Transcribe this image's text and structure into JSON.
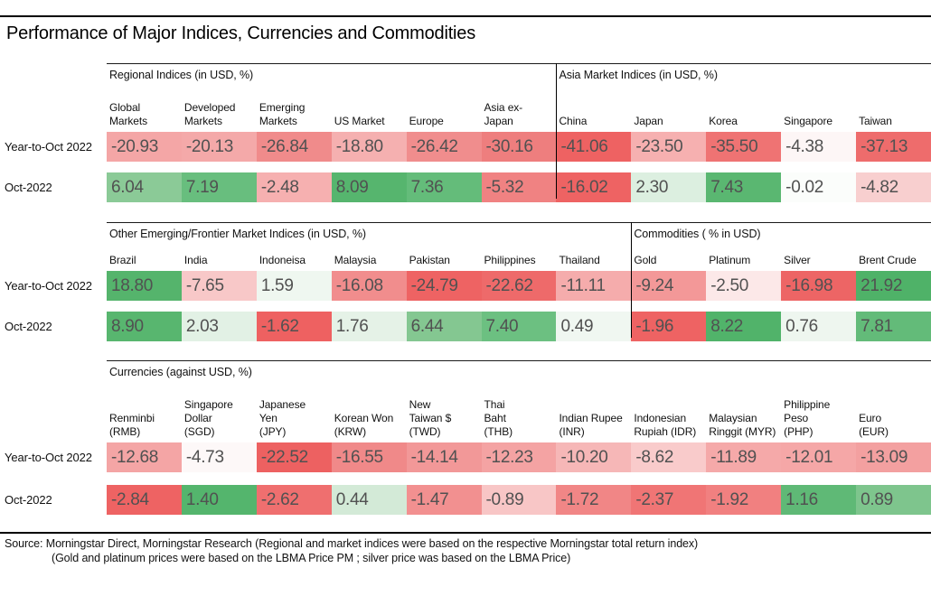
{
  "title": "Performance of Major Indices, Currencies and Commodities",
  "sections": [
    {
      "groups": [
        {
          "label": "Regional Indices (in USD, %)"
        },
        {
          "label": "Asia Market Indices (in USD, %)"
        }
      ],
      "columns": [
        "Global\nMarkets",
        "Developed\nMarkets",
        "Emerging\nMarkets",
        "US Market",
        "Europe",
        "Asia ex-\nJapan",
        "China",
        "Japan",
        "Korea",
        "Singapore",
        "Taiwan"
      ],
      "rows": [
        {
          "label": "Year-to-Oct 2022",
          "cells": [
            {
              "v": "-20.93",
              "bg": "#f4a6a6"
            },
            {
              "v": "-20.13",
              "bg": "#f4a9a9"
            },
            {
              "v": "-26.84",
              "bg": "#f08b8b"
            },
            {
              "v": "-18.80",
              "bg": "#f5b0b0"
            },
            {
              "v": "-26.42",
              "bg": "#f08d8d"
            },
            {
              "v": "-30.16",
              "bg": "#ee7e7e"
            },
            {
              "v": "-41.06",
              "bg": "#ee6262"
            },
            {
              "v": "-23.50",
              "bg": "#f6b0b0"
            },
            {
              "v": "-35.50",
              "bg": "#ef7373"
            },
            {
              "v": "-4.38",
              "bg": "#fdf6f6"
            },
            {
              "v": "-37.13",
              "bg": "#ee6c6c"
            }
          ]
        },
        {
          "label": "Oct-2022",
          "cells": [
            {
              "v": "6.04",
              "bg": "#8bca97"
            },
            {
              "v": "7.19",
              "bg": "#68be7e"
            },
            {
              "v": "-2.48",
              "bg": "#f6b0b0"
            },
            {
              "v": "8.09",
              "bg": "#56b56e"
            },
            {
              "v": "7.36",
              "bg": "#64bc7a"
            },
            {
              "v": "-5.32",
              "bg": "#f08282"
            },
            {
              "v": "-16.02",
              "bg": "#ee6363"
            },
            {
              "v": "2.30",
              "bg": "#dcefe0"
            },
            {
              "v": "7.43",
              "bg": "#5ab771"
            },
            {
              "v": "-0.02",
              "bg": "#fbfdfb"
            },
            {
              "v": "-4.82",
              "bg": "#f8cfcf"
            }
          ]
        }
      ]
    },
    {
      "groups": [
        {
          "label": "Other Emerging/Frontier Market Indices (in USD, %)"
        },
        {
          "label": "Commodities ( % in USD)"
        }
      ],
      "columns": [
        "Brazil",
        "India",
        "Indoneisa",
        "Malaysia",
        "Pakistan",
        "Philippines",
        "Thailand",
        "Gold",
        "Platinum",
        "Silver",
        "Brent Crude"
      ],
      "rows": [
        {
          "label": "Year-to-Oct 2022",
          "cells": [
            {
              "v": "18.80",
              "bg": "#55b46c"
            },
            {
              "v": "-7.65",
              "bg": "#f8c8c8"
            },
            {
              "v": "1.59",
              "bg": "#eff7f0"
            },
            {
              "v": "-16.08",
              "bg": "#f18d8d"
            },
            {
              "v": "-24.79",
              "bg": "#ee6363"
            },
            {
              "v": "-22.62",
              "bg": "#ee6a6a"
            },
            {
              "v": "-11.11",
              "bg": "#f5acac"
            },
            {
              "v": "-9.24",
              "bg": "#f39898"
            },
            {
              "v": "-2.50",
              "bg": "#fce8e8"
            },
            {
              "v": "-16.98",
              "bg": "#ed6565"
            },
            {
              "v": "21.92",
              "bg": "#4fb268"
            }
          ]
        },
        {
          "label": "Oct-2022",
          "cells": [
            {
              "v": "8.90",
              "bg": "#58b66f"
            },
            {
              "v": "2.03",
              "bg": "#e2f1e5"
            },
            {
              "v": "-1.62",
              "bg": "#ee6161"
            },
            {
              "v": "1.76",
              "bg": "#e5f2e7"
            },
            {
              "v": "6.44",
              "bg": "#84c791"
            },
            {
              "v": "7.40",
              "bg": "#6cc081"
            },
            {
              "v": "0.49",
              "bg": "#f0f7f1"
            },
            {
              "v": "-1.96",
              "bg": "#ee6363"
            },
            {
              "v": "8.22",
              "bg": "#51b36a"
            },
            {
              "v": "0.76",
              "bg": "#eef6ef"
            },
            {
              "v": "7.81",
              "bg": "#63bb79"
            }
          ]
        }
      ]
    },
    {
      "groups": [
        {
          "label": "Currencies (against USD, %)"
        }
      ],
      "columns": [
        "Renminbi\n(RMB)",
        "Singapore\nDollar\n(SGD)",
        "Japanese\nYen\n(JPY)",
        "Korean Won\n(KRW)",
        "New\nTaiwan $\n(TWD)",
        "Thai\nBaht\n(THB)",
        "Indian Rupee\n(INR)",
        "Indonesian\nRupiah (IDR)",
        "Malaysian\nRinggit (MYR)",
        "Philippine Peso\n(PHP)",
        "Euro\n(EUR)"
      ],
      "rows": [
        {
          "label": "Year-to-Oct 2022",
          "cells": [
            {
              "v": "-12.68",
              "bg": "#f4a5a5"
            },
            {
              "v": "-4.73",
              "bg": "#fdf8f8"
            },
            {
              "v": "-22.52",
              "bg": "#ed6161"
            },
            {
              "v": "-16.55",
              "bg": "#f08989"
            },
            {
              "v": "-14.14",
              "bg": "#f29898"
            },
            {
              "v": "-12.23",
              "bg": "#f4a3a3"
            },
            {
              "v": "-10.20",
              "bg": "#f6b7b7"
            },
            {
              "v": "-8.62",
              "bg": "#f9cbcb"
            },
            {
              "v": "-11.89",
              "bg": "#f5a9a9"
            },
            {
              "v": "-12.01",
              "bg": "#f5a7a7"
            },
            {
              "v": "-13.09",
              "bg": "#f3a0a0"
            }
          ]
        },
        {
          "label": "Oct-2022",
          "cells": [
            {
              "v": "-2.84",
              "bg": "#ee6363"
            },
            {
              "v": "1.40",
              "bg": "#54b56d"
            },
            {
              "v": "-2.62",
              "bg": "#ef6f6f"
            },
            {
              "v": "0.44",
              "bg": "#d3ead7"
            },
            {
              "v": "-1.47",
              "bg": "#f29090"
            },
            {
              "v": "-0.89",
              "bg": "#f8c6c6"
            },
            {
              "v": "-1.72",
              "bg": "#f18686"
            },
            {
              "v": "-2.37",
              "bg": "#f07575"
            },
            {
              "v": "-1.92",
              "bg": "#f18080"
            },
            {
              "v": "1.16",
              "bg": "#5fb976"
            },
            {
              "v": "0.89",
              "bg": "#7ec58d"
            }
          ]
        }
      ]
    }
  ],
  "footer": {
    "line1": "Source: Morningstar Direct, Morningstar Research (Regional and market indices were based on the respective Morningstar total return index)",
    "line2": "(Gold and platinum prices were based on the LBMA Price PM ; silver price was based on the LBMA Price)"
  },
  "colors": {
    "negative_strong": "#ee6262",
    "positive_strong": "#4fb268",
    "value_text": "#515151",
    "rule": "#000000"
  },
  "chart_data": [
    {
      "type": "heatmap",
      "title": "Regional Indices (in USD, %) | Asia Market Indices (in USD, %)",
      "columns": [
        "Global Markets",
        "Developed Markets",
        "Emerging Markets",
        "US Market",
        "Europe",
        "Asia ex-Japan",
        "China",
        "Japan",
        "Korea",
        "Singapore",
        "Taiwan"
      ],
      "rows": [
        "Year-to-Oct 2022",
        "Oct-2022"
      ],
      "values": [
        [
          -20.93,
          -20.13,
          -26.84,
          -18.8,
          -26.42,
          -30.16,
          -41.06,
          -23.5,
          -35.5,
          -4.38,
          -37.13
        ],
        [
          6.04,
          7.19,
          -2.48,
          8.09,
          7.36,
          -5.32,
          -16.02,
          2.3,
          7.43,
          -0.02,
          -4.82
        ]
      ],
      "color_scale": "red-white-green by value"
    },
    {
      "type": "heatmap",
      "title": "Other Emerging/Frontier Market Indices (in USD, %) | Commodities ( % in USD)",
      "columns": [
        "Brazil",
        "India",
        "Indoneisa",
        "Malaysia",
        "Pakistan",
        "Philippines",
        "Thailand",
        "Gold",
        "Platinum",
        "Silver",
        "Brent Crude"
      ],
      "rows": [
        "Year-to-Oct 2022",
        "Oct-2022"
      ],
      "values": [
        [
          18.8,
          -7.65,
          1.59,
          -16.08,
          -24.79,
          -22.62,
          -11.11,
          -9.24,
          -2.5,
          -16.98,
          21.92
        ],
        [
          8.9,
          2.03,
          -1.62,
          1.76,
          6.44,
          7.4,
          0.49,
          -1.96,
          8.22,
          0.76,
          7.81
        ]
      ],
      "color_scale": "red-white-green by value"
    },
    {
      "type": "heatmap",
      "title": "Currencies (against USD, %)",
      "columns": [
        "Renminbi (RMB)",
        "Singapore Dollar (SGD)",
        "Japanese Yen (JPY)",
        "Korean Won (KRW)",
        "New Taiwan $ (TWD)",
        "Thai Baht (THB)",
        "Indian Rupee (INR)",
        "Indonesian Rupiah (IDR)",
        "Malaysian Ringgit (MYR)",
        "Philippine Peso (PHP)",
        "Euro (EUR)"
      ],
      "rows": [
        "Year-to-Oct 2022",
        "Oct-2022"
      ],
      "values": [
        [
          -12.68,
          -4.73,
          -22.52,
          -16.55,
          -14.14,
          -12.23,
          -10.2,
          -8.62,
          -11.89,
          -12.01,
          -13.09
        ],
        [
          -2.84,
          1.4,
          -2.62,
          0.44,
          -1.47,
          -0.89,
          -1.72,
          -2.37,
          -1.92,
          1.16,
          0.89
        ]
      ],
      "color_scale": "red-white-green by value"
    }
  ]
}
